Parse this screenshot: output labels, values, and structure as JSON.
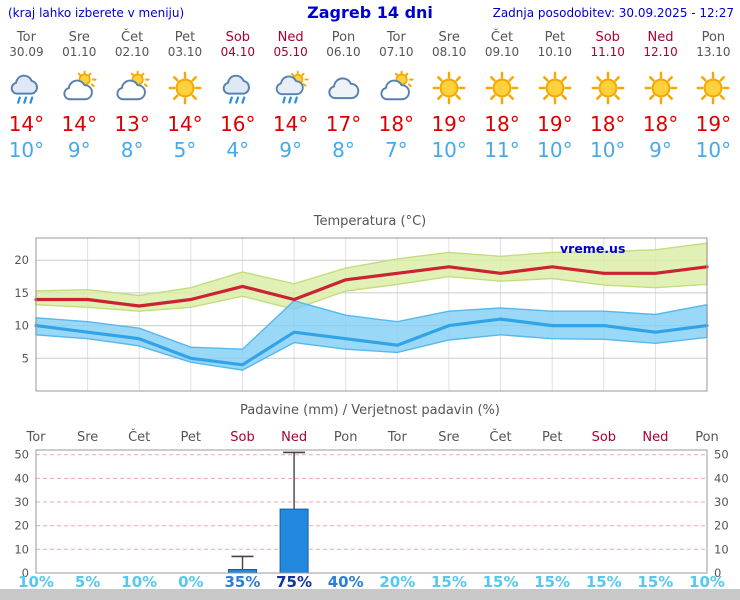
{
  "header": {
    "left_note": "(kraj lahko izberete v meniju)",
    "title": "Zagreb 14 dni",
    "updated": "Zadnja posodobitev: 30.09.2025 - 12:27"
  },
  "colors": {
    "header_blue": "#0000cc",
    "weekday_gray": "#555555",
    "weekend_red": "#aa0033",
    "tmax_red": "#dd0000",
    "tmin_blue": "#44aaee",
    "prob_low": "#55c8f0",
    "prob_mid": "#2b7fd4",
    "prob_high": "#10339e",
    "bar_blue": "#2288dd"
  },
  "forecast": {
    "degree_symbol": "°",
    "days": [
      {
        "name": "Tor",
        "date": "30.09",
        "weekend": false,
        "icon": "rain-icon",
        "tmax": 14,
        "tmin": 10
      },
      {
        "name": "Sre",
        "date": "01.10",
        "weekend": false,
        "icon": "sun-cloud-icon",
        "tmax": 14,
        "tmin": 9
      },
      {
        "name": "Čet",
        "date": "02.10",
        "weekend": false,
        "icon": "sun-cloud-icon",
        "tmax": 13,
        "tmin": 8
      },
      {
        "name": "Pet",
        "date": "03.10",
        "weekend": false,
        "icon": "sun-icon",
        "tmax": 14,
        "tmin": 5
      },
      {
        "name": "Sob",
        "date": "04.10",
        "weekend": true,
        "icon": "rain-icon",
        "tmax": 16,
        "tmin": 4
      },
      {
        "name": "Ned",
        "date": "05.10",
        "weekend": true,
        "icon": "rain-sun-icon",
        "tmax": 14,
        "tmin": 9
      },
      {
        "name": "Pon",
        "date": "06.10",
        "weekend": false,
        "icon": "cloud-icon",
        "tmax": 17,
        "tmin": 8
      },
      {
        "name": "Tor",
        "date": "07.10",
        "weekend": false,
        "icon": "sun-cloud-icon",
        "tmax": 18,
        "tmin": 7
      },
      {
        "name": "Sre",
        "date": "08.10",
        "weekend": false,
        "icon": "sun-icon",
        "tmax": 19,
        "tmin": 10
      },
      {
        "name": "Čet",
        "date": "09.10",
        "weekend": false,
        "icon": "sun-icon",
        "tmax": 18,
        "tmin": 11
      },
      {
        "name": "Pet",
        "date": "10.10",
        "weekend": false,
        "icon": "sun-icon",
        "tmax": 19,
        "tmin": 10
      },
      {
        "name": "Sob",
        "date": "11.10",
        "weekend": true,
        "icon": "sun-icon",
        "tmax": 18,
        "tmin": 10
      },
      {
        "name": "Ned",
        "date": "12.10",
        "weekend": true,
        "icon": "sun-icon",
        "tmax": 18,
        "tmin": 9
      },
      {
        "name": "Pon",
        "date": "13.10",
        "weekend": false,
        "icon": "sun-icon",
        "tmax": 19,
        "tmin": 10
      }
    ]
  },
  "chart_data": [
    {
      "type": "line",
      "title": "Temperatura (°C)",
      "watermark": "vreme.us",
      "categories": [
        "Tor",
        "Sre",
        "Čet",
        "Pet",
        "Sob",
        "Ned",
        "Pon",
        "Tor",
        "Sre",
        "Čet",
        "Pet",
        "Sob",
        "Ned",
        "Pon"
      ],
      "ylim": [
        0,
        23.4
      ],
      "yticks": [
        5,
        10,
        15,
        20
      ],
      "grid": true,
      "legend_position": "none",
      "series": [
        {
          "name": "max-temperature",
          "color": "#cc2233",
          "values": [
            14,
            14,
            13,
            14,
            16,
            14,
            17,
            18,
            19,
            18,
            19,
            18,
            18,
            19
          ]
        },
        {
          "name": "min-temperature",
          "color": "#33a3e8",
          "values": [
            10,
            9,
            8,
            5,
            4,
            9,
            8,
            7,
            10,
            11,
            10,
            10,
            9,
            10
          ]
        }
      ],
      "bands": [
        {
          "name": "max-temperature-range",
          "color": "#d9eda2",
          "edge": "#c3dd7d",
          "upper": [
            15.3,
            15.5,
            14.6,
            15.8,
            18.2,
            16.4,
            18.8,
            20.2,
            21.2,
            20.6,
            21.2,
            21.3,
            21.6,
            22.6
          ],
          "lower": [
            13.2,
            12.8,
            12.2,
            12.8,
            14.5,
            12.5,
            15.3,
            16.3,
            17.5,
            16.8,
            17.2,
            16.2,
            15.8,
            16.3
          ]
        },
        {
          "name": "min-temperature-range",
          "color": "#7fd0f5",
          "edge": "#55b8ee",
          "upper": [
            11.2,
            10.6,
            9.6,
            6.7,
            6.4,
            13.8,
            11.6,
            10.6,
            12.2,
            12.7,
            12.2,
            12.2,
            11.7,
            13.2
          ],
          "lower": [
            8.6,
            8.0,
            6.9,
            4.4,
            3.2,
            7.4,
            6.4,
            5.9,
            7.8,
            8.6,
            8.0,
            7.9,
            7.3,
            8.2
          ]
        }
      ]
    },
    {
      "type": "bar",
      "title": "Padavine (mm) / Verjetnost padavin (%)",
      "categories": [
        "Tor",
        "Sre",
        "Čet",
        "Pet",
        "Sob",
        "Ned",
        "Pon",
        "Tor",
        "Sre",
        "Čet",
        "Pet",
        "Sob",
        "Ned",
        "Pon"
      ],
      "weekend": [
        false,
        false,
        false,
        false,
        true,
        true,
        false,
        false,
        false,
        false,
        false,
        true,
        true,
        false
      ],
      "ylim": [
        0,
        52
      ],
      "yticks": [
        0,
        10,
        20,
        30,
        40,
        50
      ],
      "precip_mm": [
        0,
        0,
        0,
        0,
        1.5,
        27,
        0,
        0,
        0,
        0,
        0,
        0,
        0,
        0
      ],
      "precip_max_mm": [
        0,
        0,
        0,
        0,
        7,
        51,
        0,
        0,
        0,
        0,
        0,
        0,
        0,
        0
      ],
      "probability_pct": [
        10,
        5,
        10,
        0,
        35,
        75,
        40,
        20,
        15,
        15,
        15,
        15,
        15,
        10
      ]
    }
  ]
}
